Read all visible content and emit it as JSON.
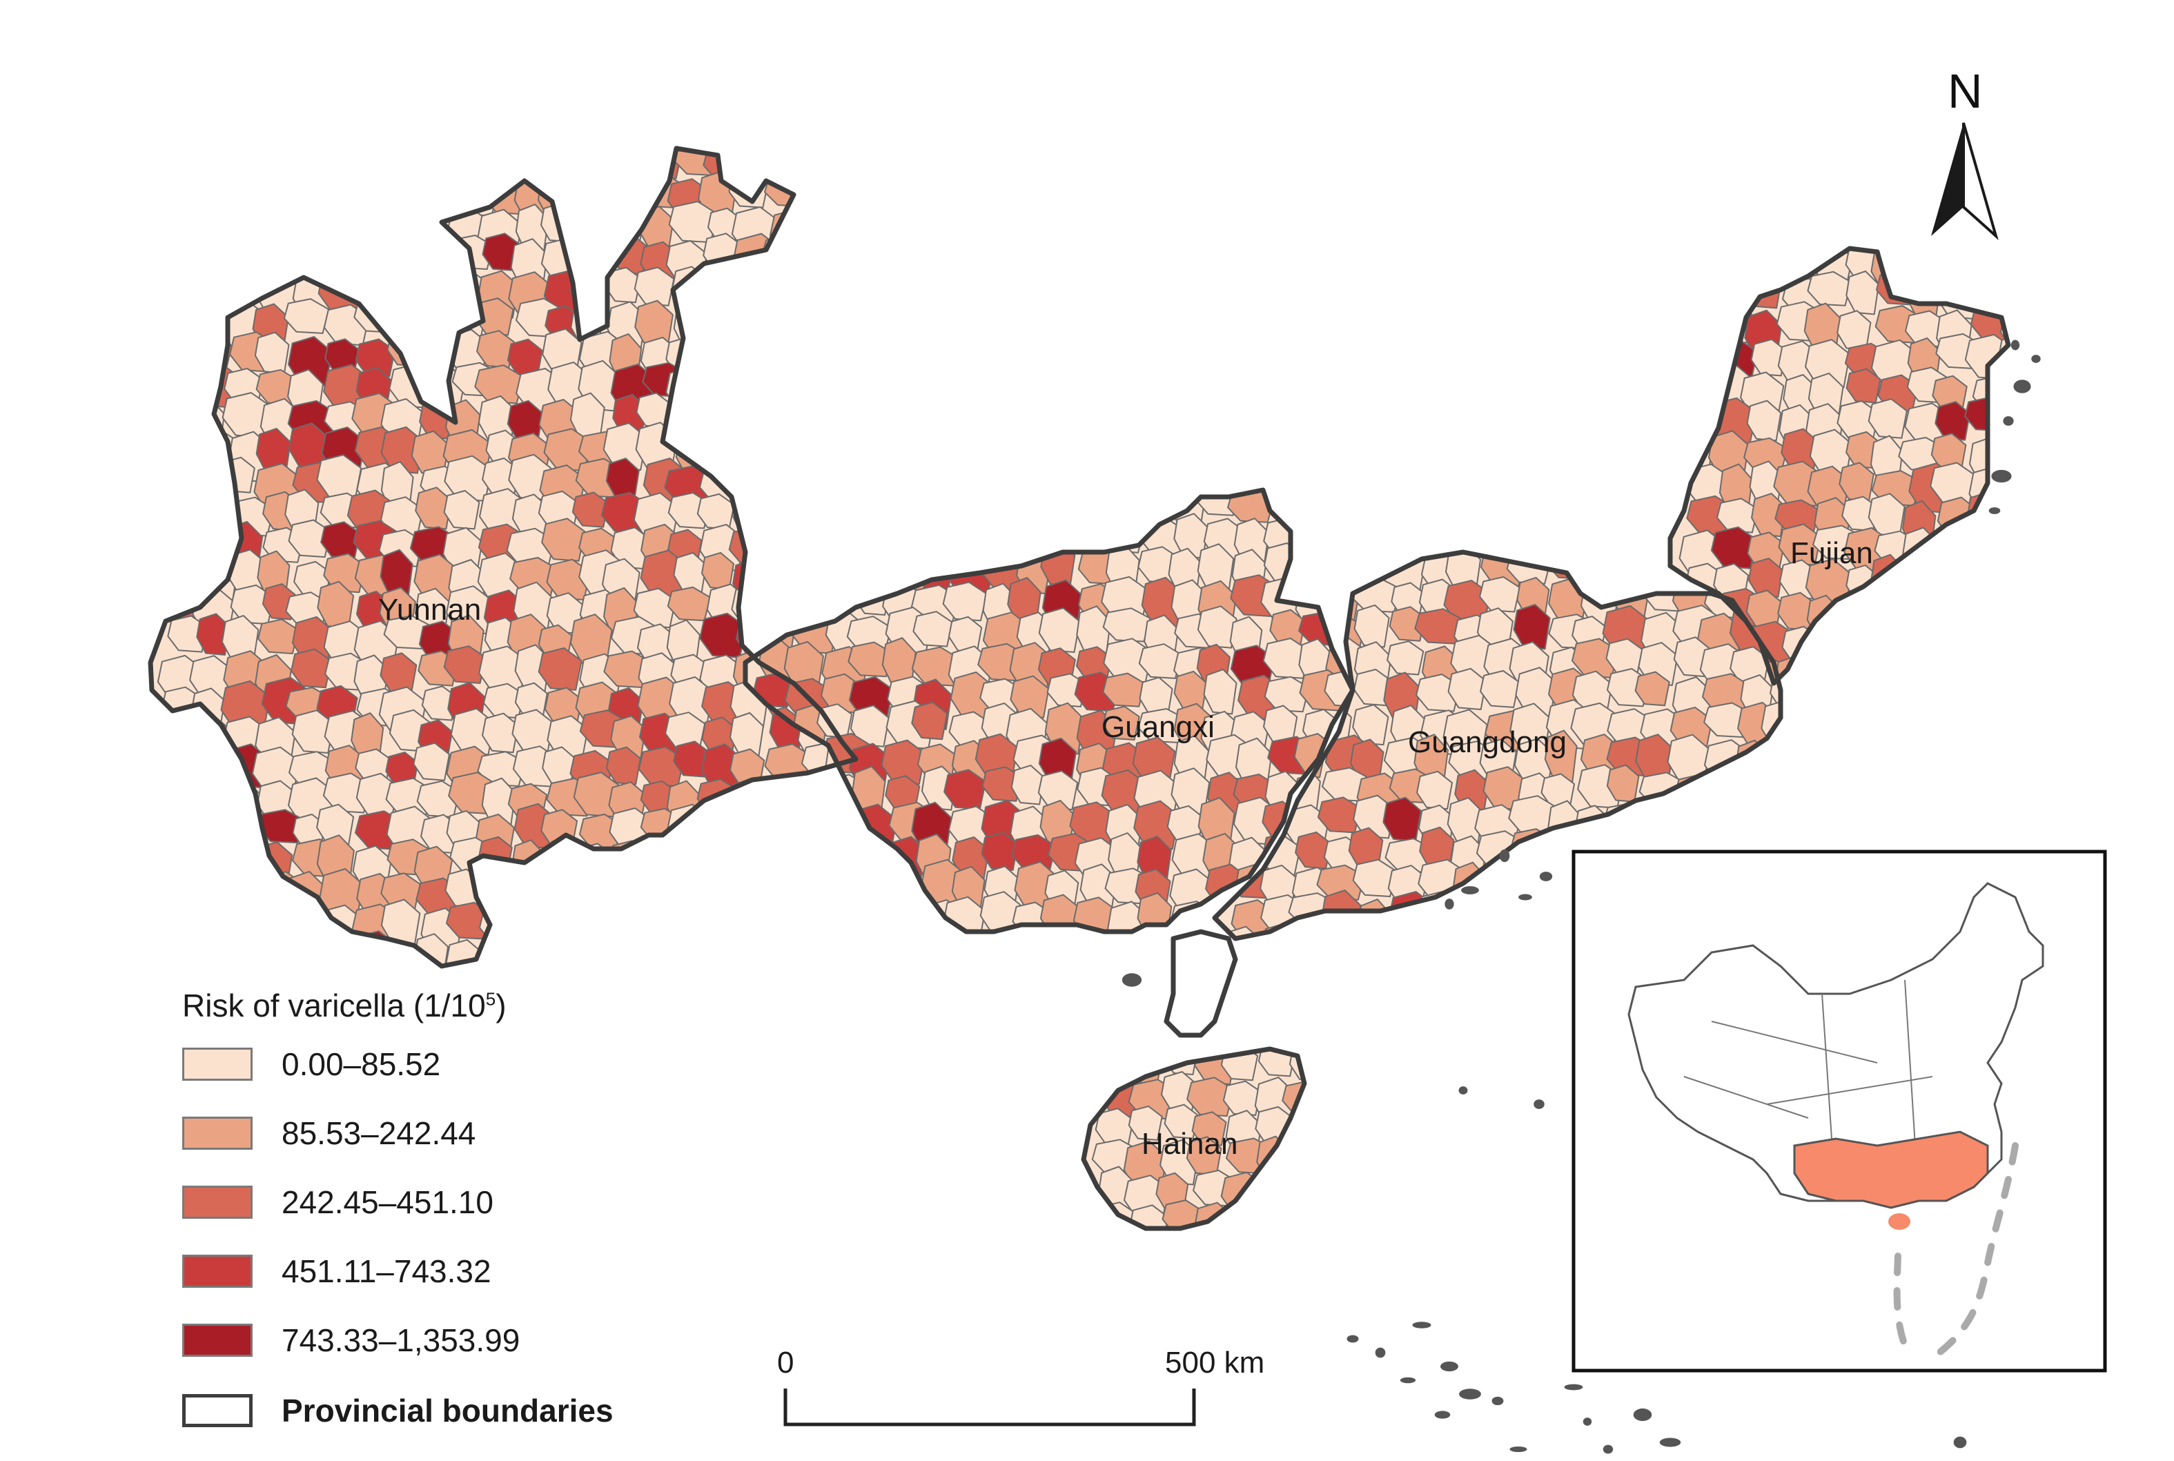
{
  "map": {
    "provinces": [
      {
        "id": "yunnan",
        "name": "Yunnan"
      },
      {
        "id": "guangxi",
        "name": "Guangxi"
      },
      {
        "id": "guangdong",
        "name": "Guangdong"
      },
      {
        "id": "fujian",
        "name": "Fujian"
      },
      {
        "id": "hainan",
        "name": "Hainan"
      }
    ],
    "classes": [
      {
        "label": "0.00–85.52",
        "color": "#fbe2cf"
      },
      {
        "label": "85.53–242.44",
        "color": "#eaa483"
      },
      {
        "label": "242.45–451.10",
        "color": "#d86956"
      },
      {
        "label": "451.11–743.32",
        "color": "#c93c3b"
      },
      {
        "label": "743.33–1,353.99",
        "color": "#a91d27"
      }
    ],
    "province_border_color": "#3d3d3d",
    "inset_highlight_color": "#f68a6a"
  },
  "legend": {
    "title_prefix": "Risk of varicella (1/10",
    "title_sup": "5",
    "title_suffix": ")",
    "boundary_label": "Provincial boundaries"
  },
  "scale_bar": {
    "start_label": "0",
    "end_label": "500 km"
  },
  "north_arrow": {
    "label": "N"
  }
}
